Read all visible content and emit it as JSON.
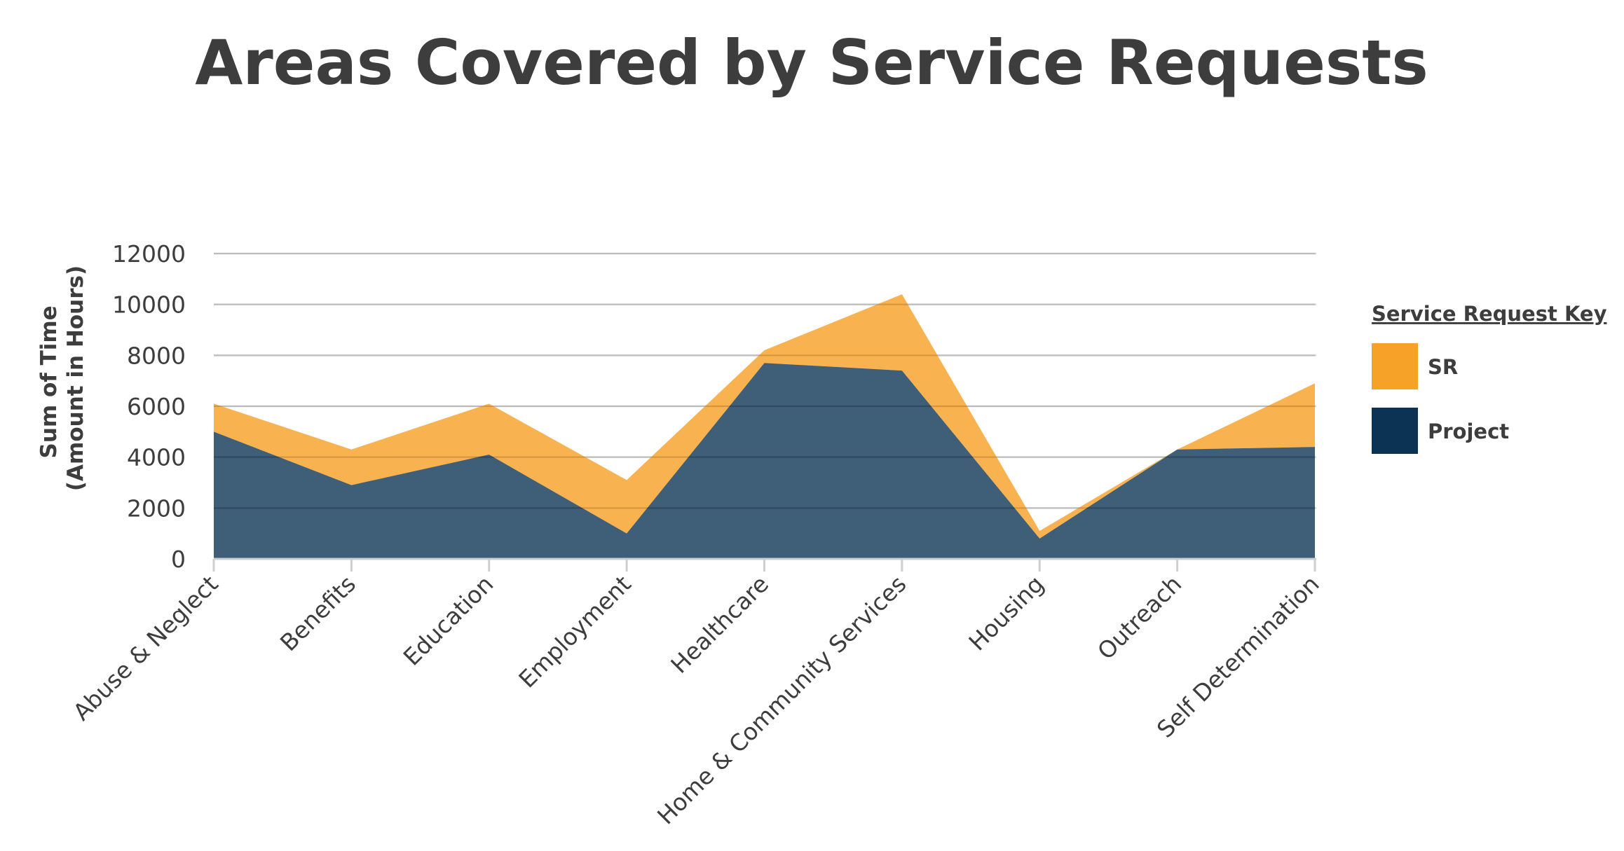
{
  "chart_data": {
    "type": "area",
    "title": "Areas Covered by Service Requests",
    "ylabel": [
      "Sum of Time",
      "(Amount in Hours)"
    ],
    "xlabel": "",
    "ylim": [
      0,
      12000
    ],
    "yticks": [
      0,
      2000,
      4000,
      6000,
      8000,
      10000,
      12000
    ],
    "grid": true,
    "stacked": true,
    "categories": [
      "Abuse & Neglect",
      "Benefits",
      "Education",
      "Employment",
      "Healthcare",
      "Home & Community Services",
      "Housing",
      "Outreach",
      "Self Determination"
    ],
    "series": [
      {
        "name": "Project",
        "color": "#0c3354",
        "values": [
          5000,
          2900,
          4100,
          1000,
          7700,
          7400,
          800,
          4300,
          4400
        ]
      },
      {
        "name": "SR",
        "color": "#f6a128",
        "values": [
          1100,
          1400,
          2000,
          2100,
          500,
          3000,
          300,
          0,
          2500
        ]
      }
    ],
    "legend": {
      "title": "Service Request Key",
      "position": "right",
      "items": [
        {
          "label": "SR",
          "color": "#f6a128"
        },
        {
          "label": "Project",
          "color": "#0c3354"
        }
      ]
    }
  }
}
